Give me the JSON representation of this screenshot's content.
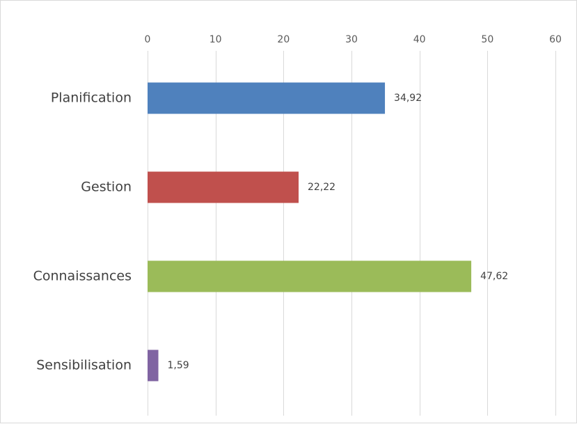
{
  "chart_data": {
    "type": "bar",
    "orientation": "horizontal",
    "title": "",
    "xlabel": "",
    "ylabel": "",
    "categories": [
      "Planification",
      "Gestion",
      "Connaissances",
      "Sensibilisation"
    ],
    "values": [
      34.92,
      22.22,
      47.62,
      1.59
    ],
    "value_labels": [
      "34,92",
      "22,22",
      "47,62",
      "1,59"
    ],
    "colors": [
      "#4f81bd",
      "#c0504d",
      "#9bbb59",
      "#8064a2"
    ],
    "xlim": [
      0,
      60
    ],
    "x_ticks": [
      0,
      10,
      20,
      30,
      40,
      50,
      60
    ],
    "x_tick_labels": [
      "0",
      "10",
      "20",
      "30",
      "40",
      "50",
      "60"
    ],
    "x_axis_position": "top",
    "grid": true,
    "legend": "none"
  }
}
